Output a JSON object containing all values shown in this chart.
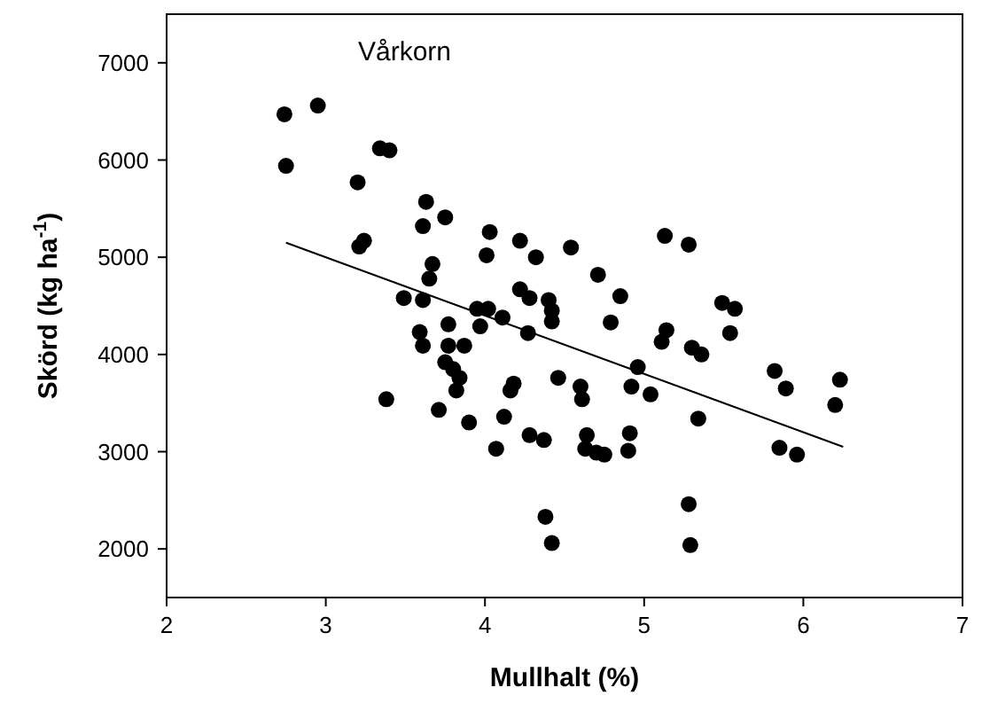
{
  "chart_data": {
    "type": "scatter",
    "title": "Vårkorn",
    "xlabel": "Mullhalt (%)",
    "ylabel": "Skörd (kg ha$^{-1}$)",
    "xlim": [
      2,
      7
    ],
    "ylim": [
      1500,
      7500
    ],
    "xticks": [
      2,
      3,
      4,
      5,
      6,
      7
    ],
    "yticks": [
      2000,
      3000,
      4000,
      5000,
      6000,
      7000
    ],
    "grid": false,
    "marker": "circle",
    "series": [
      {
        "color": "#000000",
        "x": [
          2.74,
          2.95,
          2.75,
          3.34,
          3.4,
          3.2,
          3.63,
          3.75,
          3.61,
          3.24,
          3.21,
          3.67,
          3.65,
          3.49,
          3.61,
          3.95,
          3.97,
          3.77,
          3.59,
          3.61,
          3.77,
          3.87,
          3.75,
          3.8,
          3.84,
          3.82,
          3.38,
          3.71,
          3.9,
          4.03,
          4.01,
          4.22,
          4.32,
          4.54,
          5.13,
          5.28,
          4.71,
          4.85,
          4.22,
          4.28,
          4.4,
          4.42,
          4.42,
          4.02,
          4.11,
          4.27,
          4.79,
          5.14,
          5.11,
          5.3,
          5.36,
          4.96,
          4.92,
          5.04,
          4.46,
          4.6,
          4.61,
          4.18,
          4.16,
          4.12,
          4.07,
          4.28,
          4.37,
          4.64,
          4.63,
          4.7,
          4.75,
          4.91,
          4.9,
          5.34,
          4.38,
          4.42,
          5.28,
          5.29,
          5.49,
          5.57,
          5.54,
          5.82,
          5.89,
          6.23,
          6.2,
          5.85,
          5.96
        ],
        "values": [
          6470,
          6560,
          5940,
          6120,
          6100,
          5770,
          5570,
          5410,
          5320,
          5170,
          5110,
          4930,
          4780,
          4580,
          4560,
          4470,
          4290,
          4310,
          4230,
          4090,
          4090,
          4090,
          3920,
          3850,
          3760,
          3630,
          3540,
          3430,
          3300,
          5260,
          5020,
          5170,
          5000,
          5100,
          5220,
          5130,
          4820,
          4600,
          4670,
          4580,
          4560,
          4450,
          4340,
          4470,
          4380,
          4220,
          4330,
          4250,
          4130,
          4070,
          4000,
          3870,
          3670,
          3590,
          3760,
          3670,
          3540,
          3700,
          3630,
          3360,
          3030,
          3170,
          3120,
          3170,
          3030,
          2990,
          2970,
          3190,
          3010,
          3340,
          2330,
          2060,
          2460,
          2040,
          4530,
          4470,
          4220,
          3830,
          3650,
          3740,
          3480,
          3040,
          2970
        ]
      },
      {
        "type": "line",
        "color": "#000000",
        "marker": "none",
        "x": [
          2.75,
          6.25
        ],
        "values": [
          5150,
          3050
        ]
      }
    ]
  }
}
